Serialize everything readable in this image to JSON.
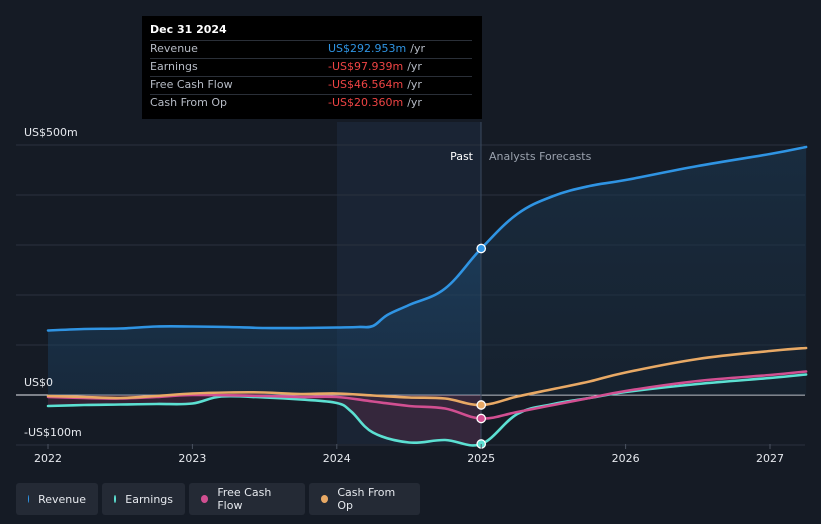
{
  "chart_data": {
    "type": "line",
    "x_ticks": [
      "2022",
      "2023",
      "2024",
      "2025",
      "2026",
      "2027"
    ],
    "y_labels": [
      "US$500m",
      "US$0",
      "-US$100m"
    ],
    "ylim": [
      -100,
      500
    ],
    "divider_labels": {
      "past": "Past",
      "forecast": "Analysts Forecasts"
    },
    "series": [
      {
        "name": "Revenue",
        "color": "#2f94e3",
        "points": [
          [
            2022.0,
            129
          ],
          [
            2022.25,
            132
          ],
          [
            2022.5,
            133
          ],
          [
            2022.75,
            137
          ],
          [
            2023.0,
            137
          ],
          [
            2023.25,
            136
          ],
          [
            2023.5,
            134
          ],
          [
            2023.75,
            134
          ],
          [
            2024.0,
            135
          ],
          [
            2024.15,
            136
          ],
          [
            2024.25,
            138
          ],
          [
            2024.35,
            160
          ],
          [
            2024.5,
            180
          ],
          [
            2024.75,
            213
          ],
          [
            2025.0,
            293
          ],
          [
            2025.25,
            362
          ],
          [
            2025.5,
            398
          ],
          [
            2025.75,
            418
          ],
          [
            2026.0,
            430
          ],
          [
            2026.5,
            458
          ],
          [
            2027.0,
            482
          ],
          [
            2027.25,
            496
          ]
        ]
      },
      {
        "name": "Earnings",
        "color": "#5ce0d2",
        "points": [
          [
            2022.0,
            -22
          ],
          [
            2022.25,
            -20
          ],
          [
            2022.5,
            -19
          ],
          [
            2022.75,
            -18
          ],
          [
            2023.0,
            -17
          ],
          [
            2023.2,
            -3
          ],
          [
            2023.5,
            -5
          ],
          [
            2023.75,
            -9
          ],
          [
            2024.0,
            -16
          ],
          [
            2024.1,
            -33
          ],
          [
            2024.25,
            -75
          ],
          [
            2024.5,
            -95
          ],
          [
            2024.75,
            -90
          ],
          [
            2025.0,
            -98
          ],
          [
            2025.25,
            -38
          ],
          [
            2025.5,
            -18
          ],
          [
            2025.75,
            -6
          ],
          [
            2026.0,
            6
          ],
          [
            2026.5,
            22
          ],
          [
            2027.0,
            34
          ],
          [
            2027.25,
            41
          ]
        ]
      },
      {
        "name": "Free Cash Flow",
        "color": "#d14f91",
        "points": [
          [
            2022.0,
            -4
          ],
          [
            2022.25,
            -6
          ],
          [
            2022.5,
            -7
          ],
          [
            2022.75,
            -4
          ],
          [
            2023.0,
            0
          ],
          [
            2023.5,
            -2
          ],
          [
            2023.75,
            -4
          ],
          [
            2024.0,
            -4
          ],
          [
            2024.25,
            -13
          ],
          [
            2024.5,
            -22
          ],
          [
            2024.75,
            -27
          ],
          [
            2025.0,
            -47
          ],
          [
            2025.25,
            -34
          ],
          [
            2025.5,
            -20
          ],
          [
            2025.75,
            -6
          ],
          [
            2026.0,
            8
          ],
          [
            2026.5,
            28
          ],
          [
            2027.0,
            40
          ],
          [
            2027.25,
            47
          ]
        ]
      },
      {
        "name": "Cash From Op",
        "color": "#e8a965",
        "points": [
          [
            2022.0,
            -2
          ],
          [
            2022.25,
            -4
          ],
          [
            2022.5,
            -6
          ],
          [
            2022.75,
            -2
          ],
          [
            2023.0,
            3
          ],
          [
            2023.25,
            5
          ],
          [
            2023.5,
            5
          ],
          [
            2023.75,
            2
          ],
          [
            2024.0,
            3
          ],
          [
            2024.25,
            -1
          ],
          [
            2024.5,
            -5
          ],
          [
            2024.75,
            -7
          ],
          [
            2025.0,
            -20
          ],
          [
            2025.25,
            -3
          ],
          [
            2025.5,
            12
          ],
          [
            2025.75,
            27
          ],
          [
            2026.0,
            45
          ],
          [
            2026.5,
            72
          ],
          [
            2027.0,
            88
          ],
          [
            2027.25,
            94
          ]
        ]
      }
    ],
    "highlight_x": 2025.0,
    "highlight_values": {
      "Revenue": 293,
      "Earnings": -98,
      "Free Cash Flow": -47,
      "Cash From Op": -20
    }
  },
  "tooltip": {
    "date": "Dec 31 2024",
    "rows": [
      {
        "name": "Revenue",
        "value": "US$292.953m",
        "unit": "/yr",
        "color": "#2f94e3"
      },
      {
        "name": "Earnings",
        "value": "-US$97.939m",
        "unit": "/yr",
        "color": "#ee4444"
      },
      {
        "name": "Free Cash Flow",
        "value": "-US$46.564m",
        "unit": "/yr",
        "color": "#ee4444"
      },
      {
        "name": "Cash From Op",
        "value": "-US$20.360m",
        "unit": "/yr",
        "color": "#ee4444"
      }
    ]
  },
  "legend": [
    {
      "label": "Revenue",
      "color": "#2f94e3"
    },
    {
      "label": "Earnings",
      "color": "#5ce0d2"
    },
    {
      "label": "Free Cash Flow",
      "color": "#d14f91"
    },
    {
      "label": "Cash From Op",
      "color": "#e8a965"
    }
  ]
}
